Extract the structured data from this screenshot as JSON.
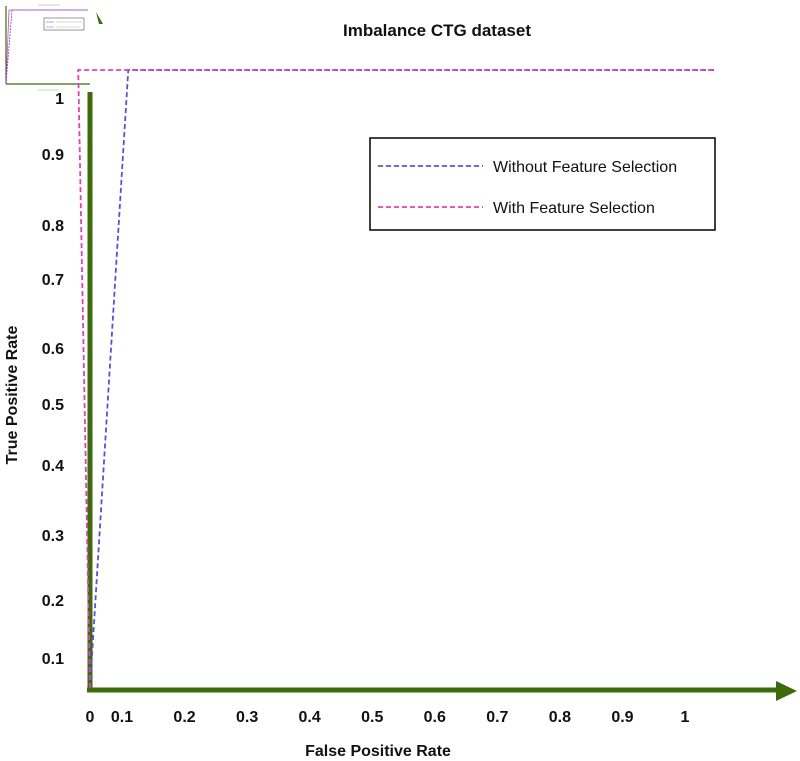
{
  "chart_data": {
    "type": "line",
    "title": "Imbalance CTG dataset",
    "xlabel": "False Positive Rate",
    "ylabel": "True Positive Rate",
    "x_ticks": [
      "0",
      "0.1",
      "0.2",
      "0.3",
      "0.4",
      "0.5",
      "0.6",
      "0.7",
      "0.8",
      "0.9",
      "1"
    ],
    "y_ticks": [
      "0.1",
      "0.2",
      "0.3",
      "0.4",
      "0.5",
      "0.6",
      "0.7",
      "0.8",
      "0.9",
      "1"
    ],
    "xlim": [
      0,
      1.05
    ],
    "ylim": [
      0,
      1.05
    ],
    "legend_position": "top-right",
    "grid": false,
    "series": [
      {
        "name": "Without Feature Selection",
        "color": "#5a4fd6",
        "x": [
          0,
          0.11,
          1.05
        ],
        "y": [
          0,
          1.0,
          1.0
        ]
      },
      {
        "name": "With Feature Selection",
        "color": "#e040b4",
        "x": [
          0,
          0.03,
          1.05
        ],
        "y": [
          0,
          1.0,
          1.0
        ]
      }
    ],
    "axis_color": "#3d6b0c"
  }
}
